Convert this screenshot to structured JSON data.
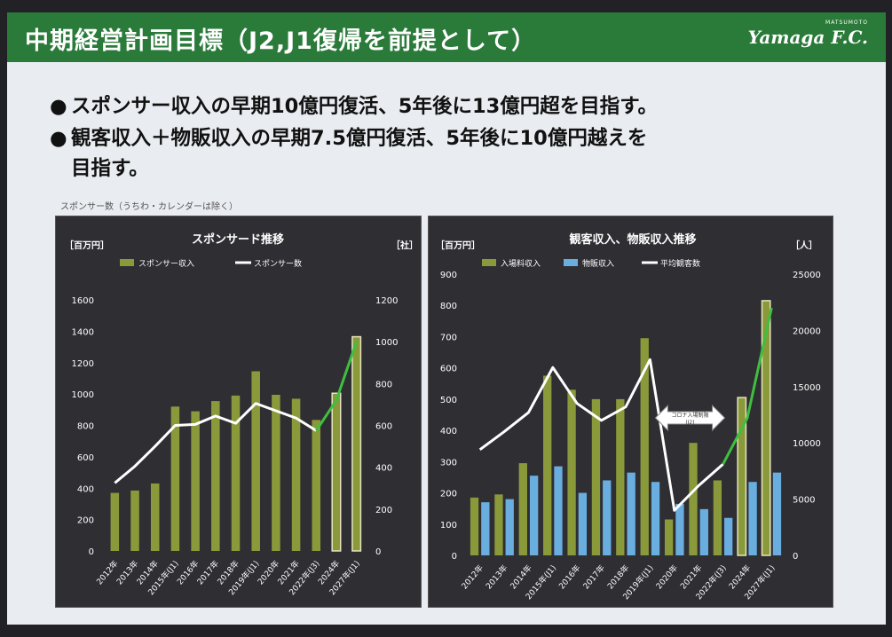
{
  "header": {
    "title": "中期経営計画目標（J2,J1復帰を前提として）",
    "logo_small": "MATSUMOTO",
    "logo_text": "Yamaga F.C."
  },
  "bullets": [
    "スポンサー収入の早期10億円復活、5年後に13億円超を目指す。",
    "観客収入＋物販収入の早期7.5億円復活、5年後に10億円越えを",
    "目指す。"
  ],
  "bullet_glyph": "●",
  "note": "スポンサー数（うちわ・カレンダーは除く）",
  "colors": {
    "bar_green": "#8a9a3a",
    "bar_blue": "#6aaee0",
    "line_white": "#ffffff",
    "line_green": "#3fbf3f",
    "panel_bg": "#2e2e33",
    "header_green": "#2a7a3a"
  },
  "chart_data": [
    {
      "type": "bar",
      "title": "スポンサード推移",
      "ylabel": "［百万円］",
      "y2label": "［社］",
      "categories": [
        "2012年",
        "2013年",
        "2014年",
        "2015年(J1)",
        "2016年",
        "2017年",
        "2018年",
        "2019年(J1)",
        "2020年",
        "2021年",
        "2022年(J3)",
        "2024年",
        "2027年(J1)"
      ],
      "ylim": [
        0,
        1600
      ],
      "yticks": [
        0,
        200,
        400,
        600,
        800,
        1000,
        1200,
        1400,
        1600
      ],
      "y2lim": [
        0,
        1200
      ],
      "y2ticks": [
        0,
        200,
        400,
        600,
        800,
        1000,
        1200
      ],
      "series": [
        {
          "name": "スポンサー収入",
          "kind": "bar",
          "axis": "left",
          "values": [
            370,
            385,
            430,
            920,
            890,
            955,
            990,
            1145,
            995,
            970,
            835,
            1005,
            1365
          ]
        },
        {
          "name": "スポンサー数",
          "kind": "line",
          "axis": "right",
          "values": [
            325,
            405,
            500,
            600,
            605,
            645,
            610,
            705,
            670,
            635,
            575,
            720,
            1000
          ]
        }
      ],
      "projection_from_index": 11,
      "legend": "top",
      "grid": false
    },
    {
      "type": "bar",
      "title": "観客収入、物販収入推移",
      "ylabel": "［百万円］",
      "y2label": "［人］",
      "categories": [
        "2012年",
        "2013年",
        "2014年",
        "2015年(J1)",
        "2016年",
        "2017年",
        "2018年",
        "2019年(J1)",
        "2020年",
        "2021年",
        "2022年(J3)",
        "2024年",
        "2027年(J1)"
      ],
      "ylim": [
        0,
        900
      ],
      "yticks": [
        0,
        100,
        200,
        300,
        400,
        500,
        600,
        700,
        800,
        900
      ],
      "y2lim": [
        0,
        25000
      ],
      "y2ticks": [
        0,
        5000,
        10000,
        15000,
        20000,
        25000
      ],
      "series": [
        {
          "name": "入場料収入",
          "kind": "bar",
          "axis": "left",
          "values": [
            185,
            195,
            295,
            575,
            530,
            500,
            500,
            695,
            115,
            360,
            240,
            505,
            815
          ]
        },
        {
          "name": "物販収入",
          "kind": "bar",
          "axis": "left",
          "values": [
            170,
            180,
            255,
            285,
            200,
            240,
            265,
            235,
            165,
            148,
            120,
            235,
            265
          ]
        },
        {
          "name": "平均観客数",
          "kind": "line",
          "axis": "right",
          "values": [
            9400,
            11000,
            12700,
            16700,
            13500,
            12000,
            13200,
            17400,
            4000,
            6200,
            8100,
            12200,
            22000
          ]
        }
      ],
      "projection_from_index": 11,
      "annotation": "コロナ入場制限\n(J2)",
      "legend": "top",
      "grid": false
    }
  ]
}
